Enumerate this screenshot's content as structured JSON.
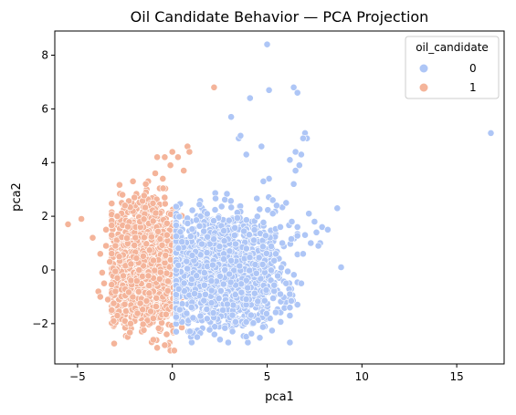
{
  "chart_data": {
    "type": "scatter",
    "title": "Oil Candidate Behavior — PCA Projection",
    "xlabel": "pca1",
    "ylabel": "pca2",
    "xlim": [
      -6.2,
      17.5
    ],
    "ylim": [
      -3.5,
      8.9
    ],
    "xticks": [
      -5,
      0,
      5,
      10,
      15
    ],
    "yticks": [
      -2,
      0,
      2,
      4,
      6,
      8
    ],
    "xtick_labels": [
      "−5",
      "0",
      "5",
      "10",
      "15"
    ],
    "ytick_labels": [
      "−2",
      "0",
      "2",
      "4",
      "6",
      "8"
    ],
    "grid": false,
    "legend_placement": "top-right",
    "legend": {
      "title": "oil_candidate",
      "entries": [
        {
          "label": "0",
          "color": "#aec6f6"
        },
        {
          "label": "1",
          "color": "#f4b49a"
        }
      ]
    },
    "series": [
      {
        "name": "0",
        "color": "#aec6f6",
        "cluster": {
          "x_mean": 2.7,
          "x_sd": 1.5,
          "x_min": 0.2,
          "x_max": 6.6,
          "y_mean": 0.0,
          "y_sd": 1.05,
          "y_min": -2.7,
          "y_max": 3.4,
          "count": 1600
        },
        "points": [
          [
            5.0,
            8.4
          ],
          [
            5.1,
            6.7
          ],
          [
            6.4,
            6.8
          ],
          [
            6.6,
            6.6
          ],
          [
            4.1,
            6.4
          ],
          [
            3.1,
            5.7
          ],
          [
            7.0,
            5.1
          ],
          [
            7.1,
            4.9
          ],
          [
            6.9,
            4.9
          ],
          [
            6.5,
            4.4
          ],
          [
            3.5,
            4.9
          ],
          [
            3.6,
            5.0
          ],
          [
            4.7,
            4.6
          ],
          [
            3.9,
            4.3
          ],
          [
            6.8,
            4.3
          ],
          [
            6.2,
            4.1
          ],
          [
            6.7,
            3.9
          ],
          [
            6.5,
            3.7
          ],
          [
            5.1,
            3.4
          ],
          [
            4.8,
            3.3
          ],
          [
            6.4,
            3.2
          ],
          [
            5.3,
            2.6
          ],
          [
            7.2,
            2.1
          ],
          [
            7.5,
            1.8
          ],
          [
            6.3,
            1.8
          ],
          [
            6.0,
            2.5
          ],
          [
            5.5,
            2.4
          ],
          [
            5.3,
            2.1
          ],
          [
            6.6,
            1.6
          ],
          [
            5.7,
            1.6
          ],
          [
            7.0,
            1.3
          ],
          [
            7.3,
            1.0
          ],
          [
            6.9,
            0.6
          ],
          [
            5.8,
            1.0
          ],
          [
            7.9,
            1.6
          ],
          [
            8.2,
            1.5
          ],
          [
            7.6,
            1.4
          ],
          [
            7.8,
            1.0
          ],
          [
            7.7,
            0.9
          ],
          [
            8.7,
            2.3
          ],
          [
            8.9,
            0.1
          ],
          [
            6.8,
            -0.5
          ],
          [
            6.2,
            -0.9
          ],
          [
            6.2,
            -1.4
          ],
          [
            6.2,
            -1.7
          ],
          [
            5.7,
            -0.9
          ],
          [
            6.0,
            -0.5
          ],
          [
            16.8,
            5.1
          ]
        ]
      },
      {
        "name": "1",
        "color": "#f4b49a",
        "cluster": {
          "x_mean": -1.4,
          "x_sd": 0.95,
          "x_min": -3.2,
          "x_max": 0.5,
          "y_mean": 0.2,
          "y_sd": 1.15,
          "y_min": -2.8,
          "y_max": 3.3,
          "count": 1500
        },
        "points": [
          [
            2.2,
            6.8
          ],
          [
            0.8,
            4.6
          ],
          [
            0.9,
            4.4
          ],
          [
            0.3,
            4.2
          ],
          [
            -0.8,
            4.2
          ],
          [
            -0.4,
            4.2
          ],
          [
            0.0,
            4.4
          ],
          [
            -0.1,
            3.9
          ],
          [
            0.6,
            3.7
          ],
          [
            -0.5,
            3.4
          ],
          [
            -0.9,
            3.6
          ],
          [
            -1.4,
            3.2
          ],
          [
            -5.5,
            1.7
          ],
          [
            -4.8,
            1.9
          ],
          [
            -4.2,
            1.2
          ],
          [
            -3.5,
            1.5
          ],
          [
            -3.2,
            1.3
          ],
          [
            -3.5,
            0.9
          ],
          [
            -3.8,
            0.6
          ],
          [
            -3.3,
            0.3
          ],
          [
            -3.7,
            -0.1
          ],
          [
            -3.6,
            -0.5
          ],
          [
            -3.9,
            -0.8
          ],
          [
            -3.8,
            -1.0
          ],
          [
            -3.4,
            -1.1
          ],
          [
            -3.0,
            -0.8
          ],
          [
            -3.2,
            -1.5
          ],
          [
            -3.1,
            -1.8
          ],
          [
            -3.1,
            -1.9
          ],
          [
            -2.9,
            -1.7
          ],
          [
            -2.5,
            -1.9
          ],
          [
            -2.2,
            -2.0
          ],
          [
            -1.0,
            -2.6
          ],
          [
            -0.4,
            -2.8
          ],
          [
            -0.1,
            -3.0
          ],
          [
            0.1,
            -3.0
          ],
          [
            -0.8,
            -2.9
          ],
          [
            -0.3,
            -2.4
          ],
          [
            -2.8,
            0.5
          ],
          [
            -2.9,
            2.0
          ],
          [
            -2.5,
            2.4
          ],
          [
            -2.0,
            2.7
          ],
          [
            -2.9,
            -0.3
          ],
          [
            -3.0,
            0.9
          ]
        ]
      }
    ]
  }
}
